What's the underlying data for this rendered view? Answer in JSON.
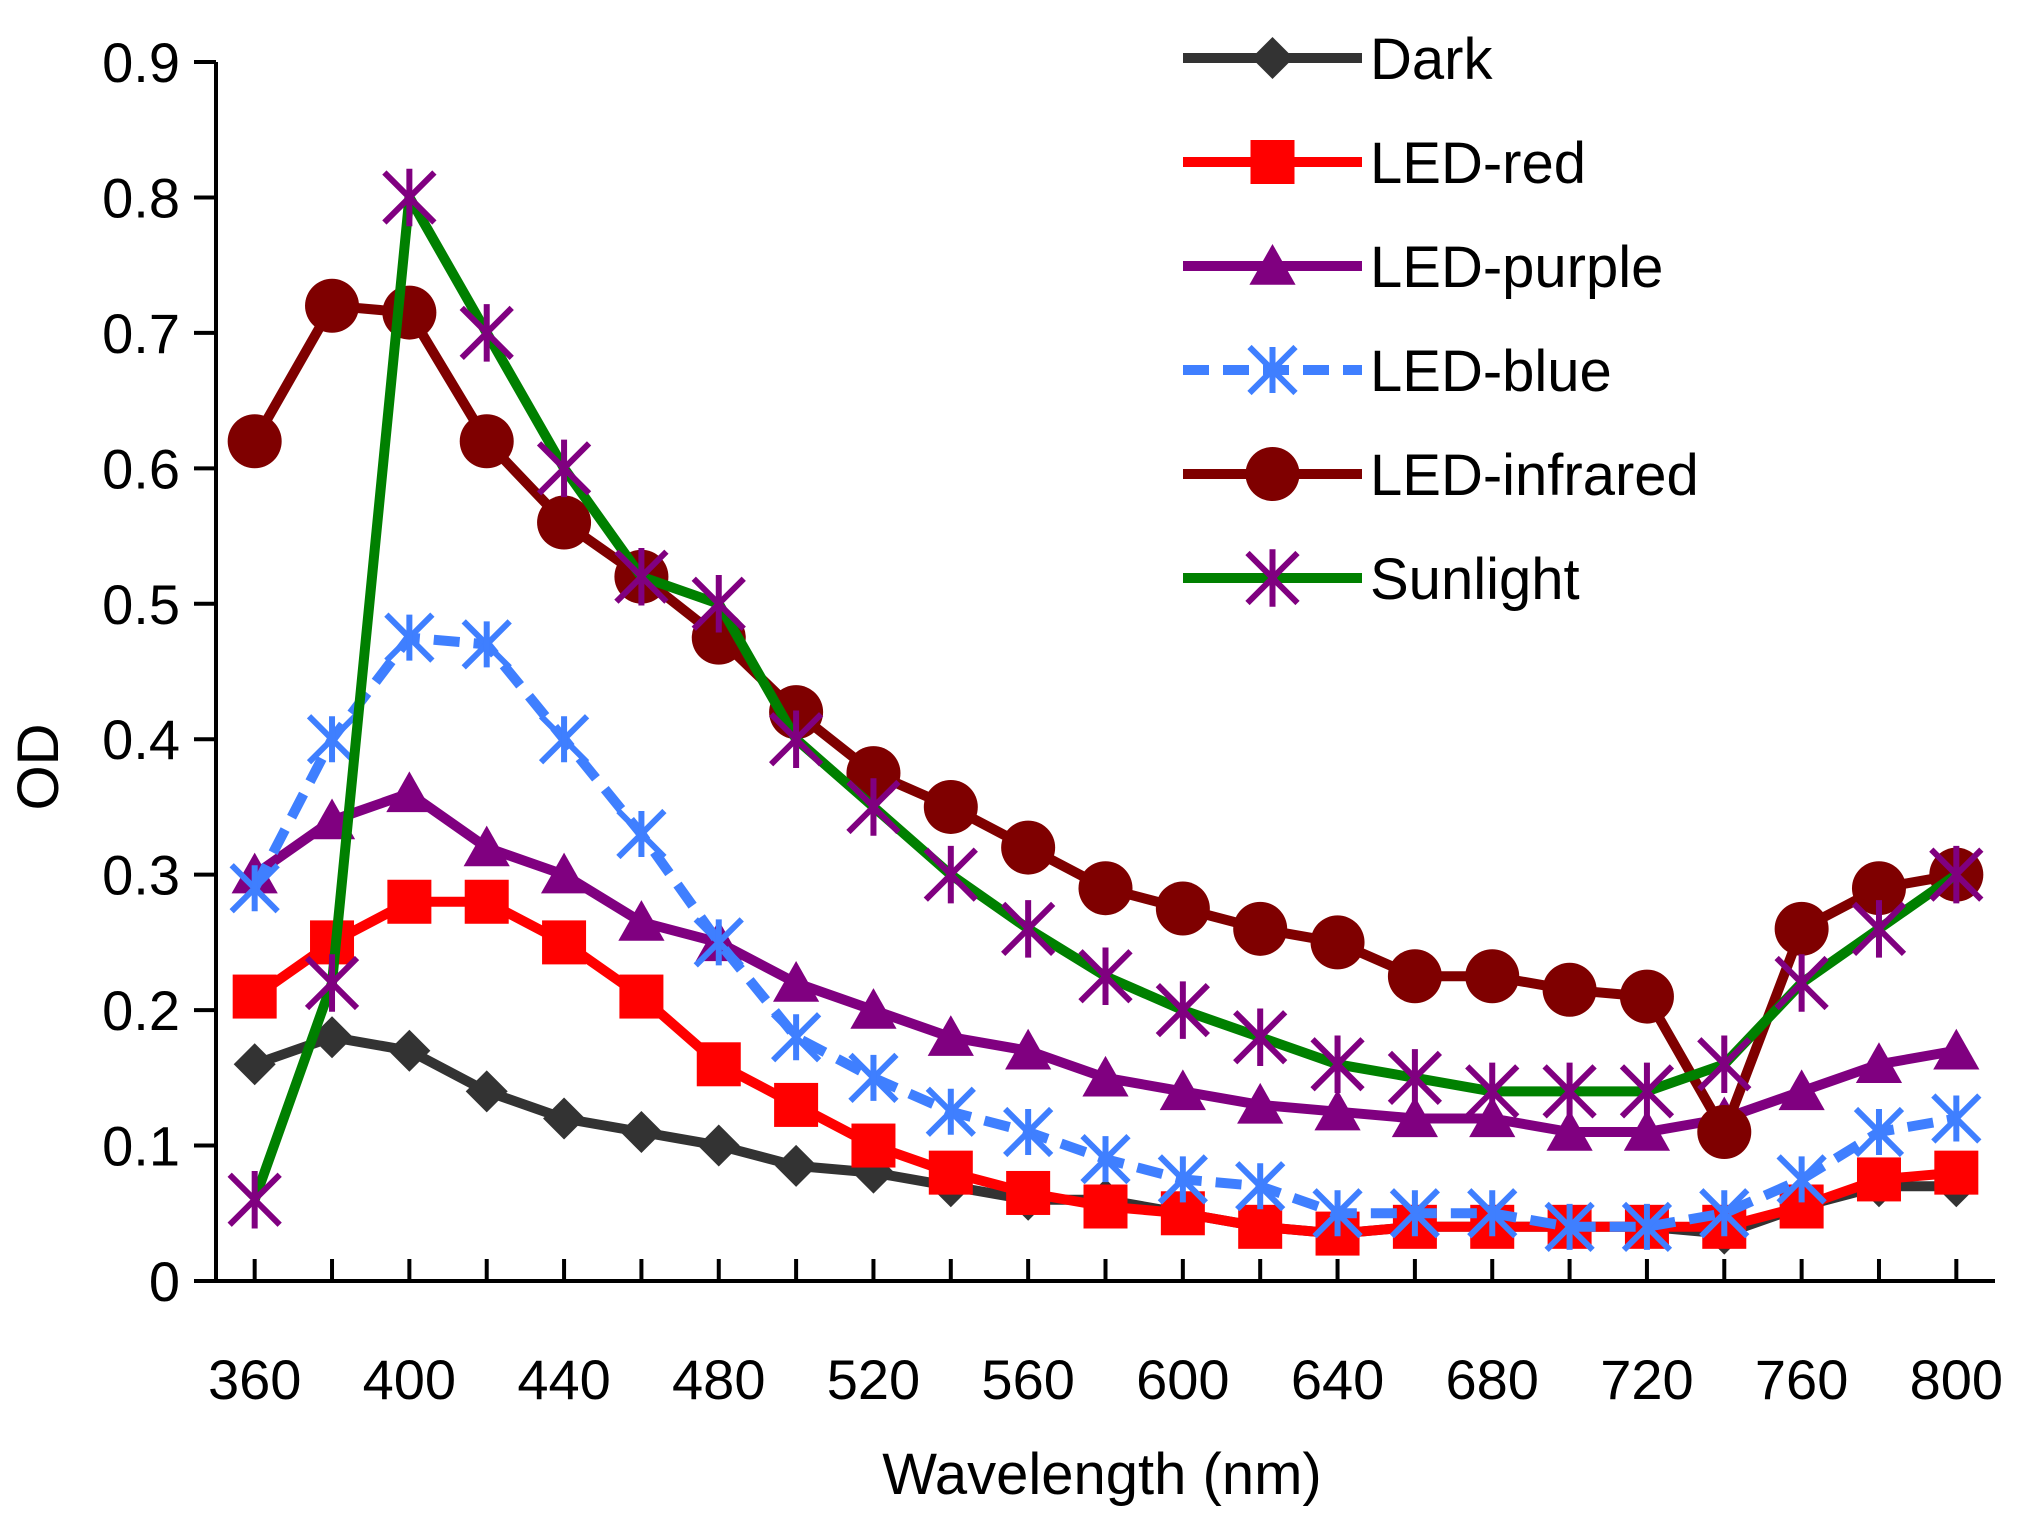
{
  "chart_data": {
    "type": "line",
    "title": "",
    "xlabel": "Wavelength (nm)",
    "ylabel": "OD",
    "xlim": [
      350,
      810
    ],
    "ylim": [
      0,
      0.9
    ],
    "xticks": [
      360,
      400,
      440,
      480,
      520,
      560,
      600,
      640,
      680,
      720,
      760,
      800
    ],
    "xtick_labels": [
      "360",
      "400",
      "440",
      "480",
      "520",
      "560",
      "600",
      "640",
      "680",
      "720",
      "760",
      "800"
    ],
    "yticks": [
      0,
      0.1,
      0.2,
      0.3,
      0.4,
      0.5,
      0.6,
      0.7,
      0.8,
      0.9
    ],
    "ytick_labels": [
      "0",
      "0.1",
      "0.2",
      "0.3",
      "0.4",
      "0.5",
      "0.6",
      "0.7",
      "0.8",
      "0.9"
    ],
    "grid": false,
    "legend_position": "top-right",
    "x": [
      360,
      380,
      400,
      420,
      440,
      460,
      480,
      500,
      520,
      540,
      560,
      580,
      600,
      620,
      640,
      660,
      680,
      700,
      720,
      740,
      760,
      780,
      800
    ],
    "series": [
      {
        "name": "Dark",
        "color": "#333333",
        "marker": "diamond",
        "dashed": false,
        "values": [
          0.16,
          0.18,
          0.17,
          0.14,
          0.12,
          0.11,
          0.1,
          0.085,
          0.08,
          0.07,
          0.06,
          0.06,
          0.05,
          0.04,
          0.035,
          0.04,
          0.04,
          0.04,
          0.04,
          0.035,
          0.055,
          0.07,
          0.07
        ]
      },
      {
        "name": "LED-red",
        "color": "#ff0000",
        "marker": "square",
        "dashed": false,
        "values": [
          0.21,
          0.25,
          0.28,
          0.28,
          0.25,
          0.21,
          0.16,
          0.13,
          0.1,
          0.08,
          0.065,
          0.055,
          0.05,
          0.04,
          0.035,
          0.04,
          0.04,
          0.04,
          0.04,
          0.04,
          0.055,
          0.075,
          0.08
        ]
      },
      {
        "name": "LED-purple",
        "color": "#800080",
        "marker": "triangle",
        "dashed": false,
        "values": [
          0.3,
          0.34,
          0.36,
          0.32,
          0.3,
          0.265,
          0.25,
          0.22,
          0.2,
          0.18,
          0.17,
          0.15,
          0.14,
          0.13,
          0.125,
          0.12,
          0.12,
          0.11,
          0.11,
          0.12,
          0.14,
          0.16,
          0.17
        ]
      },
      {
        "name": "LED-blue",
        "color": "#3f7fff",
        "marker": "asterisk",
        "dashed": true,
        "values": [
          0.29,
          0.4,
          0.475,
          0.47,
          0.4,
          0.33,
          0.25,
          0.18,
          0.15,
          0.125,
          0.11,
          0.09,
          0.075,
          0.07,
          0.05,
          0.05,
          0.05,
          0.04,
          0.04,
          0.05,
          0.075,
          0.11,
          0.12
        ]
      },
      {
        "name": "LED-infrared",
        "color": "#7f0000",
        "marker": "circle",
        "dashed": false,
        "values": [
          0.62,
          0.72,
          0.715,
          0.62,
          0.56,
          0.52,
          0.475,
          0.42,
          0.375,
          0.35,
          0.32,
          0.29,
          0.275,
          0.26,
          0.25,
          0.225,
          0.225,
          0.215,
          0.21,
          0.11,
          0.26,
          0.29,
          0.3
        ]
      },
      {
        "name": "Sunlight",
        "color": "#008000",
        "marker_color": "#800080",
        "marker": "star",
        "dashed": false,
        "values": [
          0.06,
          0.22,
          0.8,
          0.7,
          0.6,
          0.52,
          0.5,
          0.4,
          0.35,
          0.3,
          0.26,
          0.225,
          0.2,
          0.18,
          0.16,
          0.15,
          0.14,
          0.14,
          0.14,
          0.16,
          0.22,
          0.26,
          0.3
        ]
      }
    ]
  }
}
